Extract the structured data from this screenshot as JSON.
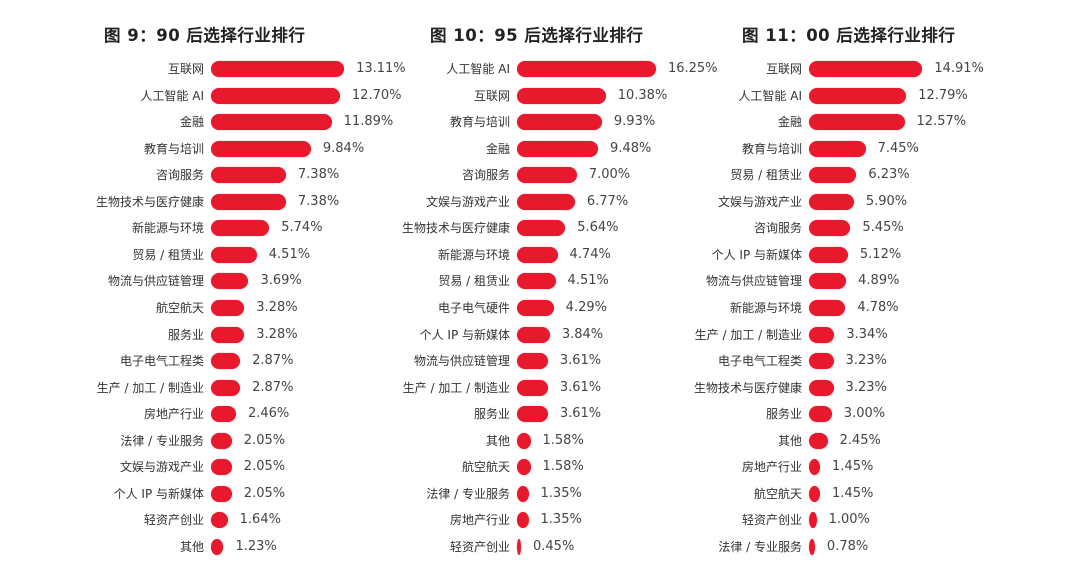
{
  "panels": [
    {
      "title": "图 9：90 后选择行业排行"
    },
    {
      "title": "图 10：95 后选择行业排行"
    },
    {
      "title": "图 11：00 后选择行业排行"
    }
  ],
  "bar_color": "#e8192c",
  "chart_data": [
    {
      "type": "bar",
      "orientation": "horizontal",
      "title": "图 9：90 后选择行业排行",
      "xlabel": "",
      "ylabel": "",
      "unit": "%",
      "categories": [
        "互联网",
        "人工智能 AI",
        "金融",
        "教育与培训",
        "咨询服务",
        "生物技术与医疗健康",
        "新能源与环境",
        "贸易 / 租赁业",
        "物流与供应链管理",
        "航空航天",
        "服务业",
        "电子电气工程类",
        "生产 / 加工 / 制造业",
        "房地产行业",
        "法律 / 专业服务",
        "文娱与游戏产业",
        "个人 IP 与新媒体",
        "轻资产创业",
        "其他"
      ],
      "values": [
        13.11,
        12.7,
        11.89,
        9.84,
        7.38,
        7.38,
        5.74,
        4.51,
        3.69,
        3.28,
        3.28,
        2.87,
        2.87,
        2.46,
        2.05,
        2.05,
        2.05,
        1.64,
        1.23
      ],
      "labels": [
        "13.11%",
        "12.70%",
        "11.89%",
        "9.84%",
        "7.38%",
        "7.38%",
        "5.74%",
        "4.51%",
        "3.69%",
        "3.28%",
        "3.28%",
        "2.87%",
        "2.87%",
        "2.46%",
        "2.05%",
        "2.05%",
        "2.05%",
        "1.64%",
        "1.23%"
      ],
      "grid": false,
      "legend": false
    },
    {
      "type": "bar",
      "orientation": "horizontal",
      "title": "图 10：95 后选择行业排行",
      "xlabel": "",
      "ylabel": "",
      "unit": "%",
      "categories": [
        "人工智能 AI",
        "互联网",
        "教育与培训",
        "金融",
        "咨询服务",
        "文娱与游戏产业",
        "生物技术与医疗健康",
        "新能源与环境",
        "贸易 / 租赁业",
        "电子电气硬件",
        "个人 IP 与新媒体",
        "物流与供应链管理",
        "生产 / 加工 / 制造业",
        "服务业",
        "其他",
        "航空航天",
        "法律 / 专业服务",
        "房地产行业",
        "轻资产创业"
      ],
      "values": [
        16.25,
        10.38,
        9.93,
        9.48,
        7.0,
        6.77,
        5.64,
        4.74,
        4.51,
        4.29,
        3.84,
        3.61,
        3.61,
        3.61,
        1.58,
        1.58,
        1.35,
        1.35,
        0.45
      ],
      "labels": [
        "16.25%",
        "10.38%",
        "9.93%",
        "9.48%",
        "7.00%",
        "6.77%",
        "5.64%",
        "4.74%",
        "4.51%",
        "4.29%",
        "3.84%",
        "3.61%",
        "3.61%",
        "3.61%",
        "1.58%",
        "1.58%",
        "1.35%",
        "1.35%",
        "0.45%"
      ],
      "grid": false,
      "legend": false
    },
    {
      "type": "bar",
      "orientation": "horizontal",
      "title": "图 11：00 后选择行业排行",
      "xlabel": "",
      "ylabel": "",
      "unit": "%",
      "categories": [
        "互联网",
        "人工智能 AI",
        "金融",
        "教育与培训",
        "贸易 / 租赁业",
        "文娱与游戏产业",
        "咨询服务",
        "个人 IP 与新媒体",
        "物流与供应链管理",
        "新能源与环境",
        "生产 / 加工 / 制造业",
        "电子电气工程类",
        "生物技术与医疗健康",
        "服务业",
        "其他",
        "房地产行业",
        "航空航天",
        "轻资产创业",
        "法律 / 专业服务"
      ],
      "values": [
        14.91,
        12.79,
        12.57,
        7.45,
        6.23,
        5.9,
        5.45,
        5.12,
        4.89,
        4.78,
        3.34,
        3.23,
        3.23,
        3.0,
        2.45,
        1.45,
        1.45,
        1.0,
        0.78
      ],
      "labels": [
        "14.91%",
        "12.79%",
        "12.57%",
        "7.45%",
        "6.23%",
        "5.90%",
        "5.45%",
        "5.12%",
        "4.89%",
        "4.78%",
        "3.34%",
        "3.23%",
        "3.23%",
        "3.00%",
        "2.45%",
        "1.45%",
        "1.45%",
        "1.00%",
        "0.78%"
      ],
      "grid": false,
      "legend": false
    }
  ]
}
